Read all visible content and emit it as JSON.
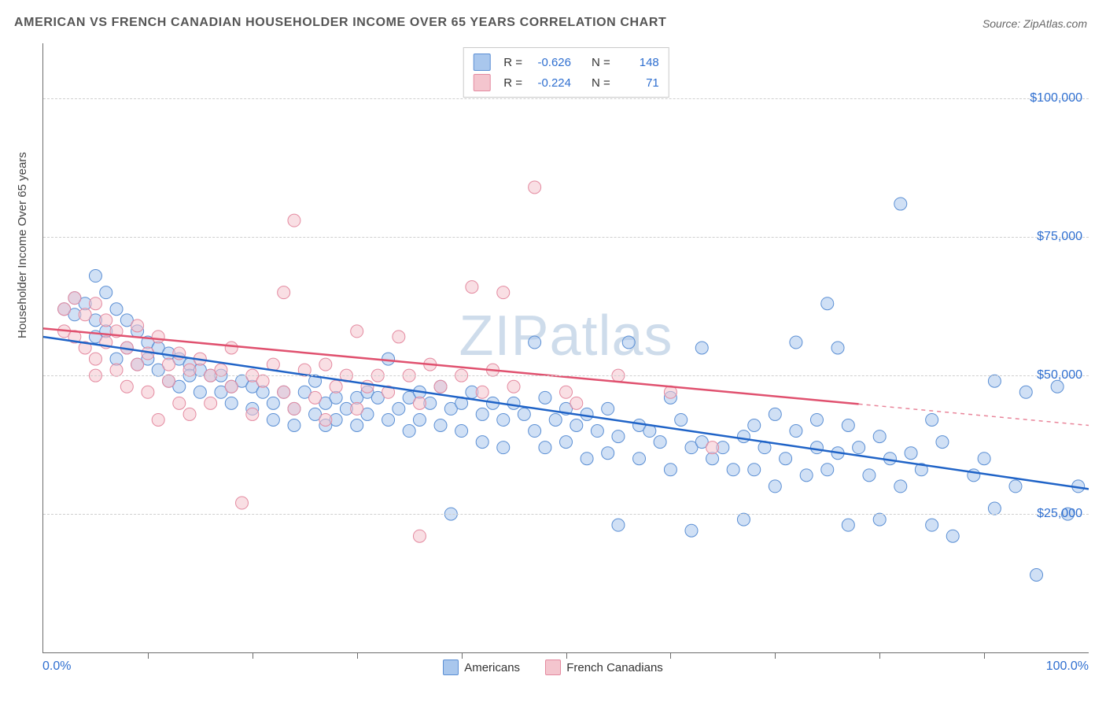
{
  "title": "AMERICAN VS FRENCH CANADIAN HOUSEHOLDER INCOME OVER 65 YEARS CORRELATION CHART",
  "source_label": "Source:",
  "source_value": "ZipAtlas.com",
  "y_axis_label": "Householder Income Over 65 years",
  "watermark": "ZIPatlas",
  "chart": {
    "type": "scatter",
    "background_color": "#ffffff",
    "xlim": [
      0,
      100
    ],
    "ylim": [
      0,
      110000
    ],
    "x_tick_step": 10,
    "y_ticks": [
      25000,
      50000,
      75000,
      100000
    ],
    "y_tick_labels": [
      "$25,000",
      "$50,000",
      "$75,000",
      "$100,000"
    ],
    "x_min_label": "0.0%",
    "x_max_label": "100.0%",
    "grid_color": "#cfcfcf",
    "axis_color": "#6c6c6c",
    "tick_label_color": "#2f6fd0",
    "marker_radius": 8,
    "marker_opacity": 0.55,
    "series": [
      {
        "id": "americans",
        "label": "Americans",
        "fill": "#a9c7ed",
        "stroke": "#5b8fd4",
        "R": -0.626,
        "N": 148,
        "trend": {
          "x1": 0,
          "y1": 57000,
          "x2": 100,
          "y2": 29500,
          "solid_until_x": 100,
          "color": "#1f63c7",
          "width": 2.5
        },
        "points": [
          [
            2,
            62000
          ],
          [
            3,
            64000
          ],
          [
            3,
            61000
          ],
          [
            4,
            63000
          ],
          [
            5,
            68000
          ],
          [
            5,
            60000
          ],
          [
            5,
            57000
          ],
          [
            6,
            65000
          ],
          [
            6,
            58000
          ],
          [
            7,
            62000
          ],
          [
            7,
            53000
          ],
          [
            8,
            60000
          ],
          [
            8,
            55000
          ],
          [
            9,
            58000
          ],
          [
            9,
            52000
          ],
          [
            10,
            56000
          ],
          [
            10,
            53000
          ],
          [
            11,
            55000
          ],
          [
            11,
            51000
          ],
          [
            12,
            54000
          ],
          [
            12,
            49000
          ],
          [
            13,
            53000
          ],
          [
            13,
            48000
          ],
          [
            14,
            52000
          ],
          [
            14,
            50000
          ],
          [
            15,
            51000
          ],
          [
            15,
            47000
          ],
          [
            16,
            50000
          ],
          [
            17,
            50000
          ],
          [
            17,
            47000
          ],
          [
            18,
            48000
          ],
          [
            18,
            45000
          ],
          [
            19,
            49000
          ],
          [
            20,
            44000
          ],
          [
            20,
            48000
          ],
          [
            21,
            47000
          ],
          [
            22,
            45000
          ],
          [
            22,
            42000
          ],
          [
            23,
            47000
          ],
          [
            24,
            44000
          ],
          [
            24,
            41000
          ],
          [
            25,
            47000
          ],
          [
            26,
            49000
          ],
          [
            26,
            43000
          ],
          [
            27,
            45000
          ],
          [
            27,
            41000
          ],
          [
            28,
            46000
          ],
          [
            28,
            42000
          ],
          [
            29,
            44000
          ],
          [
            30,
            46000
          ],
          [
            30,
            41000
          ],
          [
            31,
            47000
          ],
          [
            31,
            43000
          ],
          [
            32,
            46000
          ],
          [
            33,
            53000
          ],
          [
            33,
            42000
          ],
          [
            34,
            44000
          ],
          [
            35,
            46000
          ],
          [
            35,
            40000
          ],
          [
            36,
            47000
          ],
          [
            36,
            42000
          ],
          [
            37,
            45000
          ],
          [
            38,
            48000
          ],
          [
            38,
            41000
          ],
          [
            39,
            44000
          ],
          [
            39,
            25000
          ],
          [
            40,
            45000
          ],
          [
            40,
            40000
          ],
          [
            41,
            47000
          ],
          [
            42,
            43000
          ],
          [
            42,
            38000
          ],
          [
            43,
            45000
          ],
          [
            44,
            42000
          ],
          [
            44,
            37000
          ],
          [
            45,
            45000
          ],
          [
            46,
            43000
          ],
          [
            47,
            56000
          ],
          [
            47,
            40000
          ],
          [
            48,
            46000
          ],
          [
            48,
            37000
          ],
          [
            49,
            42000
          ],
          [
            50,
            44000
          ],
          [
            50,
            38000
          ],
          [
            51,
            41000
          ],
          [
            52,
            43000
          ],
          [
            52,
            35000
          ],
          [
            53,
            40000
          ],
          [
            54,
            44000
          ],
          [
            54,
            36000
          ],
          [
            55,
            39000
          ],
          [
            55,
            23000
          ],
          [
            56,
            56000
          ],
          [
            57,
            41000
          ],
          [
            57,
            35000
          ],
          [
            58,
            40000
          ],
          [
            59,
            38000
          ],
          [
            60,
            46000
          ],
          [
            60,
            33000
          ],
          [
            61,
            42000
          ],
          [
            62,
            37000
          ],
          [
            62,
            22000
          ],
          [
            63,
            55000
          ],
          [
            63,
            38000
          ],
          [
            64,
            35000
          ],
          [
            65,
            37000
          ],
          [
            66,
            33000
          ],
          [
            67,
            39000
          ],
          [
            67,
            24000
          ],
          [
            68,
            41000
          ],
          [
            68,
            33000
          ],
          [
            69,
            37000
          ],
          [
            70,
            43000
          ],
          [
            70,
            30000
          ],
          [
            71,
            35000
          ],
          [
            72,
            56000
          ],
          [
            72,
            40000
          ],
          [
            73,
            32000
          ],
          [
            74,
            42000
          ],
          [
            74,
            37000
          ],
          [
            75,
            63000
          ],
          [
            75,
            33000
          ],
          [
            76,
            55000
          ],
          [
            76,
            36000
          ],
          [
            77,
            41000
          ],
          [
            77,
            23000
          ],
          [
            78,
            37000
          ],
          [
            79,
            32000
          ],
          [
            80,
            39000
          ],
          [
            80,
            24000
          ],
          [
            81,
            35000
          ],
          [
            82,
            81000
          ],
          [
            82,
            30000
          ],
          [
            83,
            36000
          ],
          [
            84,
            33000
          ],
          [
            85,
            42000
          ],
          [
            85,
            23000
          ],
          [
            86,
            38000
          ],
          [
            87,
            21000
          ],
          [
            89,
            32000
          ],
          [
            90,
            35000
          ],
          [
            91,
            49000
          ],
          [
            91,
            26000
          ],
          [
            93,
            30000
          ],
          [
            94,
            47000
          ],
          [
            95,
            14000
          ],
          [
            97,
            48000
          ],
          [
            98,
            25000
          ],
          [
            99,
            30000
          ]
        ]
      },
      {
        "id": "french_canadians",
        "label": "French Canadians",
        "fill": "#f4c5ce",
        "stroke": "#e48aa0",
        "R": -0.224,
        "N": 71,
        "trend": {
          "x1": 0,
          "y1": 58500,
          "x2": 100,
          "y2": 41000,
          "solid_until_x": 78,
          "color": "#e0516f",
          "width": 2.5
        },
        "points": [
          [
            2,
            62000
          ],
          [
            2,
            58000
          ],
          [
            3,
            64000
          ],
          [
            3,
            57000
          ],
          [
            4,
            61000
          ],
          [
            4,
            55000
          ],
          [
            5,
            63000
          ],
          [
            5,
            53000
          ],
          [
            5,
            50000
          ],
          [
            6,
            60000
          ],
          [
            6,
            56000
          ],
          [
            7,
            58000
          ],
          [
            7,
            51000
          ],
          [
            8,
            55000
          ],
          [
            8,
            48000
          ],
          [
            9,
            59000
          ],
          [
            9,
            52000
          ],
          [
            10,
            54000
          ],
          [
            10,
            47000
          ],
          [
            11,
            57000
          ],
          [
            11,
            42000
          ],
          [
            12,
            52000
          ],
          [
            12,
            49000
          ],
          [
            13,
            54000
          ],
          [
            13,
            45000
          ],
          [
            14,
            51000
          ],
          [
            14,
            43000
          ],
          [
            15,
            53000
          ],
          [
            16,
            50000
          ],
          [
            16,
            45000
          ],
          [
            17,
            51000
          ],
          [
            18,
            48000
          ],
          [
            18,
            55000
          ],
          [
            19,
            27000
          ],
          [
            20,
            50000
          ],
          [
            20,
            43000
          ],
          [
            21,
            49000
          ],
          [
            22,
            52000
          ],
          [
            23,
            47000
          ],
          [
            23,
            65000
          ],
          [
            24,
            78000
          ],
          [
            24,
            44000
          ],
          [
            25,
            51000
          ],
          [
            26,
            46000
          ],
          [
            27,
            52000
          ],
          [
            27,
            42000
          ],
          [
            28,
            48000
          ],
          [
            29,
            50000
          ],
          [
            30,
            58000
          ],
          [
            30,
            44000
          ],
          [
            31,
            48000
          ],
          [
            32,
            50000
          ],
          [
            33,
            47000
          ],
          [
            34,
            57000
          ],
          [
            35,
            50000
          ],
          [
            36,
            45000
          ],
          [
            36,
            21000
          ],
          [
            37,
            52000
          ],
          [
            38,
            48000
          ],
          [
            40,
            50000
          ],
          [
            41,
            66000
          ],
          [
            42,
            47000
          ],
          [
            43,
            51000
          ],
          [
            44,
            65000
          ],
          [
            45,
            48000
          ],
          [
            47,
            84000
          ],
          [
            50,
            47000
          ],
          [
            51,
            45000
          ],
          [
            55,
            50000
          ],
          [
            60,
            47000
          ],
          [
            64,
            37000
          ]
        ]
      }
    ],
    "legend_top": {
      "r_label": "R =",
      "n_label": "N ="
    },
    "legend_bottom": {
      "items": [
        "Americans",
        "French Canadians"
      ]
    }
  }
}
